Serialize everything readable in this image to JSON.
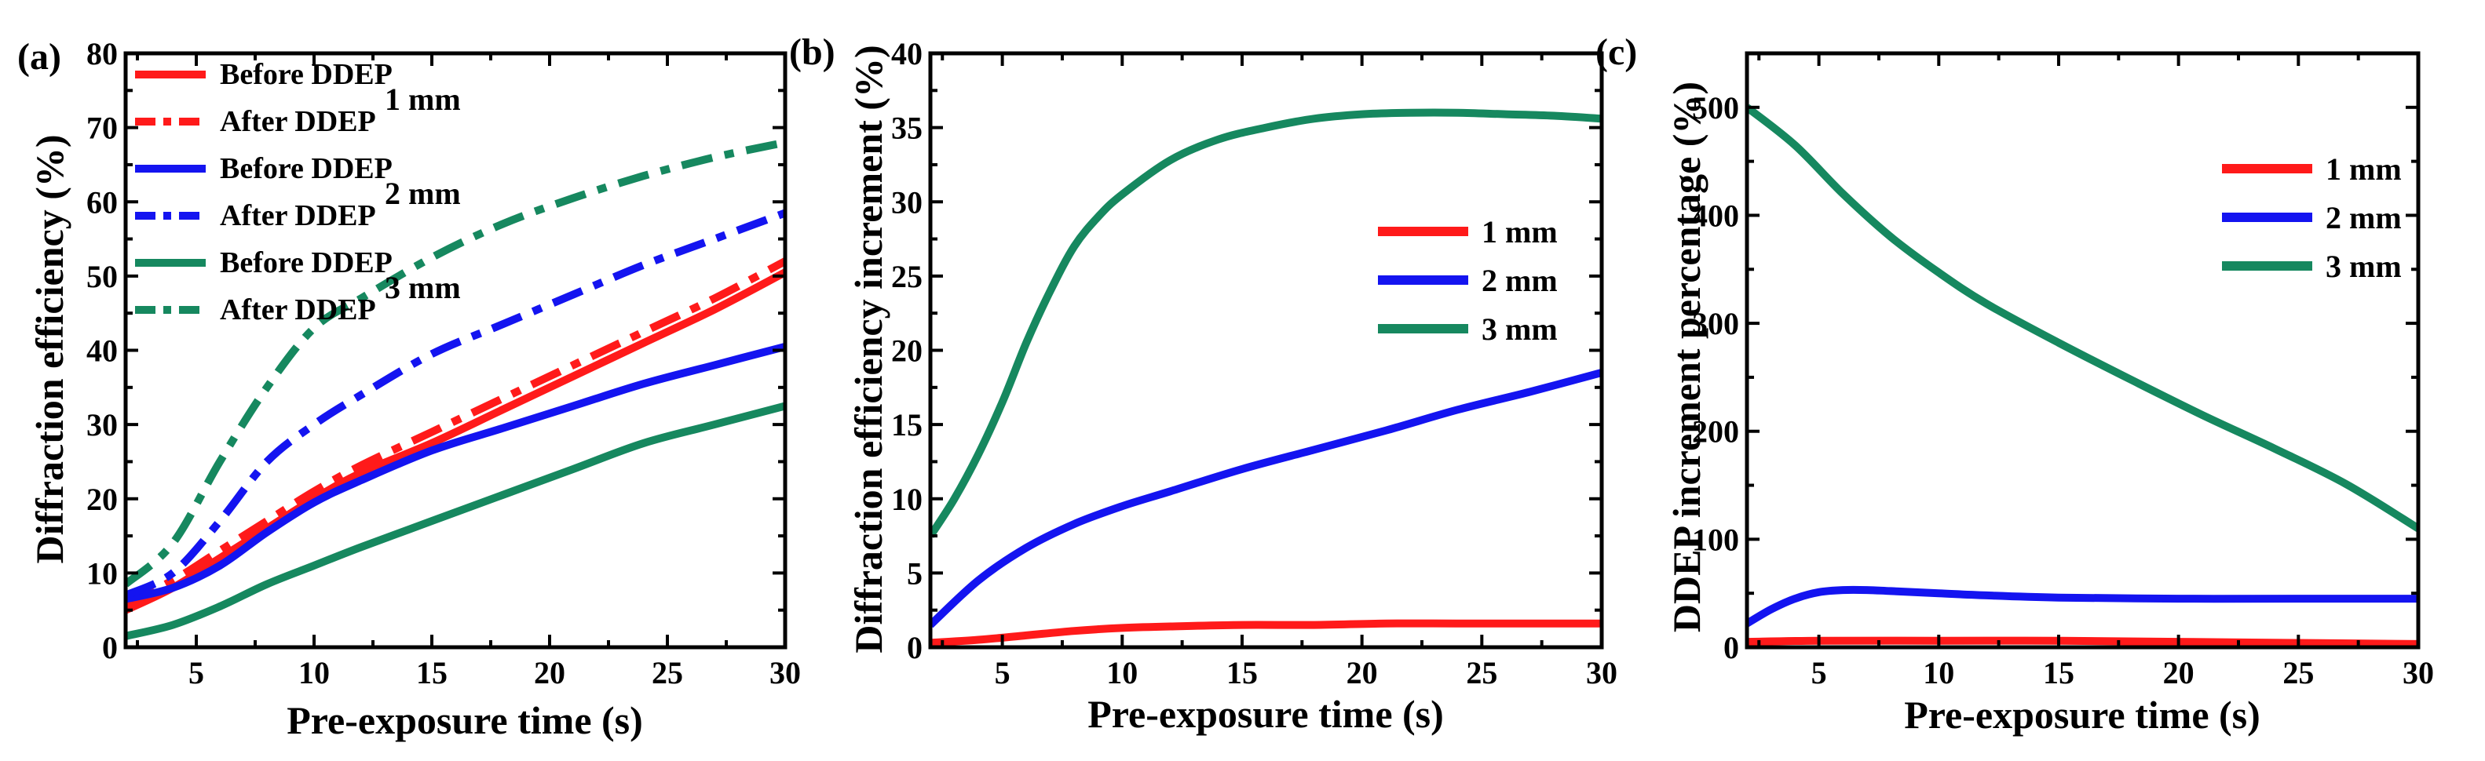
{
  "colors": {
    "red": "#ff1a1a",
    "blue": "#1414f0",
    "green": "#16885f"
  },
  "chart_data": [
    {
      "panel_label": "(a)",
      "type": "line",
      "title": "",
      "xlabel": "Pre-exposure time (s)",
      "ylabel": "Diffraction efficiency (%)",
      "xlim": [
        2,
        30
      ],
      "ylim": [
        0,
        80
      ],
      "xticks": [
        5,
        10,
        15,
        20,
        25,
        30
      ],
      "yticks": [
        0,
        10,
        20,
        30,
        40,
        50,
        60,
        70,
        80
      ],
      "legend_position": "top-left",
      "legend_groups": [
        "1 mm",
        "2 mm",
        "3 mm"
      ],
      "series": [
        {
          "name": "Before DDEP",
          "group": "1 mm",
          "color": "red",
          "dash": "solid",
          "x": [
            2,
            4,
            6,
            8,
            10,
            12,
            15,
            18,
            21,
            24,
            27,
            30
          ],
          "y": [
            5,
            8,
            12,
            16,
            20,
            23.5,
            27.5,
            32,
            36.5,
            41,
            45.5,
            50.5
          ]
        },
        {
          "name": "After DDEP",
          "group": "1 mm",
          "color": "red",
          "dash": "dashdot",
          "x": [
            2,
            4,
            6,
            8,
            10,
            12,
            15,
            18,
            21,
            24,
            27,
            30
          ],
          "y": [
            6,
            9,
            13,
            17,
            21,
            24.5,
            29,
            33.5,
            38,
            42.5,
            47,
            52
          ]
        },
        {
          "name": "Before DDEP",
          "group": "2 mm",
          "color": "blue",
          "dash": "solid",
          "x": [
            2,
            4,
            6,
            8,
            10,
            12,
            15,
            18,
            21,
            24,
            27,
            30
          ],
          "y": [
            6.5,
            8,
            11,
            15.5,
            19.5,
            22.5,
            26.5,
            29.5,
            32.5,
            35.5,
            38,
            40.5
          ]
        },
        {
          "name": "After DDEP",
          "group": "2 mm",
          "color": "blue",
          "dash": "dashdot",
          "x": [
            2,
            4,
            6,
            8,
            10,
            12,
            15,
            18,
            21,
            24,
            27,
            30
          ],
          "y": [
            7,
            10,
            17,
            25,
            30,
            34,
            39.5,
            43.5,
            47.5,
            51.5,
            55,
            58.5
          ]
        },
        {
          "name": "Before DDEP",
          "group": "3 mm",
          "color": "green",
          "dash": "solid",
          "x": [
            2,
            4,
            6,
            8,
            10,
            12,
            15,
            18,
            21,
            24,
            27,
            30
          ],
          "y": [
            1.5,
            3,
            5.5,
            8.5,
            11,
            13.5,
            17,
            20.5,
            24,
            27.5,
            30,
            32.5
          ]
        },
        {
          "name": "After DDEP",
          "group": "3 mm",
          "color": "green",
          "dash": "dashdot",
          "x": [
            2,
            4,
            6,
            8,
            10,
            12,
            15,
            18,
            21,
            24,
            27,
            30
          ],
          "y": [
            8.5,
            14,
            25,
            35,
            43,
            47,
            52.5,
            57,
            60.5,
            63.5,
            66,
            68
          ]
        }
      ]
    },
    {
      "panel_label": "(b)",
      "type": "line",
      "title": "",
      "xlabel": "Pre-exposure time (s)",
      "ylabel": "Diffraction efficiency increment (%)",
      "xlim": [
        2,
        30
      ],
      "ylim": [
        0,
        40
      ],
      "xticks": [
        5,
        10,
        15,
        20,
        25,
        30
      ],
      "yticks": [
        0,
        5,
        10,
        15,
        20,
        25,
        30,
        35,
        40
      ],
      "legend_position": "center-right",
      "series": [
        {
          "name": "1 mm",
          "color": "red",
          "dash": "solid",
          "x": [
            2,
            4,
            6,
            8,
            10,
            12,
            15,
            18,
            21,
            24,
            27,
            30
          ],
          "y": [
            0.3,
            0.5,
            0.8,
            1.1,
            1.3,
            1.4,
            1.5,
            1.5,
            1.6,
            1.6,
            1.6,
            1.6
          ]
        },
        {
          "name": "2 mm",
          "color": "blue",
          "dash": "solid",
          "x": [
            2,
            4,
            6,
            8,
            10,
            12,
            15,
            18,
            21,
            24,
            27,
            30
          ],
          "y": [
            1.5,
            4.5,
            6.7,
            8.3,
            9.5,
            10.5,
            12,
            13.3,
            14.6,
            16,
            17.2,
            18.5
          ]
        },
        {
          "name": "3 mm",
          "color": "green",
          "dash": "solid",
          "x": [
            2,
            3,
            4,
            5,
            6,
            7,
            8,
            9,
            10,
            12,
            14,
            16,
            18,
            20,
            22,
            24,
            26,
            28,
            30
          ],
          "y": [
            7.5,
            10,
            13,
            16.5,
            20.5,
            24,
            27,
            29,
            30.5,
            32.8,
            34.2,
            35,
            35.6,
            35.9,
            36,
            36,
            35.9,
            35.8,
            35.6
          ]
        }
      ]
    },
    {
      "panel_label": "(c)",
      "type": "line",
      "title": "",
      "xlabel": "Pre-exposure time (s)",
      "ylabel": "DDEP increment percentage (%)",
      "xlim": [
        2,
        30
      ],
      "ylim": [
        0,
        550
      ],
      "xticks": [
        5,
        10,
        15,
        20,
        25,
        30
      ],
      "yticks": [
        0,
        100,
        200,
        300,
        400,
        500
      ],
      "legend_position": "top-right",
      "series": [
        {
          "name": "1 mm",
          "color": "red",
          "dash": "solid",
          "x": [
            2,
            5,
            10,
            15,
            20,
            25,
            30
          ],
          "y": [
            5,
            6,
            6,
            6,
            5,
            4,
            3
          ]
        },
        {
          "name": "2 mm",
          "color": "blue",
          "dash": "solid",
          "x": [
            2,
            3,
            4,
            5,
            6,
            7,
            8,
            10,
            12,
            15,
            20,
            25,
            30
          ],
          "y": [
            22,
            35,
            45,
            51,
            53,
            53,
            52,
            50,
            48,
            46,
            45,
            45,
            45
          ]
        },
        {
          "name": "3 mm",
          "color": "green",
          "dash": "solid",
          "x": [
            2,
            4,
            6,
            8,
            10,
            12,
            15,
            18,
            21,
            24,
            27,
            30
          ],
          "y": [
            500,
            465,
            420,
            380,
            347,
            318,
            282,
            248,
            215,
            184,
            151,
            110
          ]
        }
      ]
    }
  ]
}
